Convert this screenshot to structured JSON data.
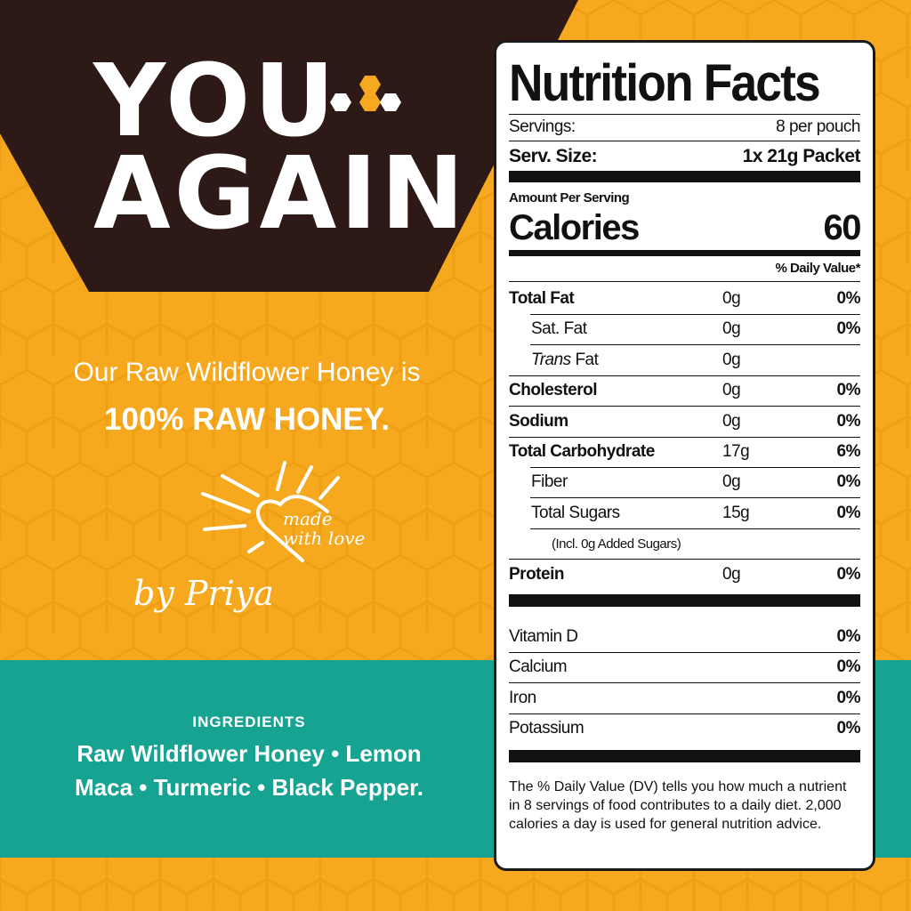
{
  "brand": {
    "logo_line1": "YOU",
    "logo_line2": "AGAIN"
  },
  "colors": {
    "orange": "#F6A91E",
    "brown": "#2D1915",
    "teal": "#17A392"
  },
  "tagline": {
    "line1": "Our Raw Wildflower Honey is",
    "line2": "100% RAW HONEY."
  },
  "badge": {
    "text1": "made",
    "text2": "with love",
    "signature": "by Priya"
  },
  "ingredients": {
    "heading": "INGREDIENTS",
    "line1": "Raw Wildflower Honey • Lemon",
    "line2": "Maca • Turmeric • Black Pepper."
  },
  "nutrition": {
    "title": "Nutrition Facts",
    "servings_label": "Servings:",
    "servings_value": "8 per pouch",
    "size_label": "Serv. Size:",
    "size_value": "1x 21g Packet",
    "amount_label": "Amount Per Serving",
    "calories_label": "Calories",
    "calories_value": "60",
    "dv_header": "% Daily Value*",
    "rows": [
      {
        "label": "Total Fat",
        "amount": "0g",
        "dv": "0%"
      },
      {
        "label": "Sat. Fat",
        "amount": "0g",
        "dv": "0%"
      },
      {
        "label": "Fat",
        "prefix": "Trans",
        "amount": "0g",
        "dv": ""
      },
      {
        "label": "Cholesterol",
        "amount": "0g",
        "dv": "0%"
      },
      {
        "label": "Sodium",
        "amount": "0g",
        "dv": "0%"
      },
      {
        "label": "Total Carbohydrate",
        "amount": "17g",
        "dv": "6%"
      },
      {
        "label": "Fiber",
        "amount": "0g",
        "dv": "0%"
      },
      {
        "label": "Total Sugars",
        "amount": "15g",
        "dv": "0%"
      },
      {
        "label": "(Incl. 0g Added Sugars)"
      },
      {
        "label": "Protein",
        "amount": "0g",
        "dv": "0%"
      }
    ],
    "vitamins": [
      {
        "label": "Vitamin D",
        "dv": "0%"
      },
      {
        "label": "Calcium",
        "dv": "0%"
      },
      {
        "label": "Iron",
        "dv": "0%"
      },
      {
        "label": "Potassium",
        "dv": "0%"
      }
    ],
    "footnote": "The % Daily Value (DV) tells you how much a nutrient in 8 servings of food contributes to a daily diet. 2,000 calories a day is used for general nutrition advice."
  }
}
